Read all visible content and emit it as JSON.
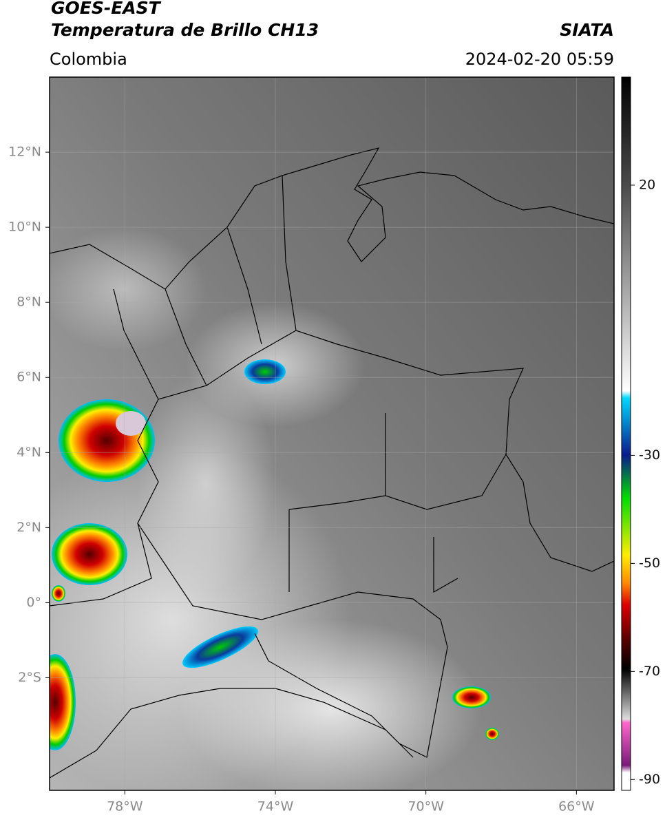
{
  "header": {
    "title": "GOES-EAST",
    "subtitle": "Temperatura de Brillo CH13",
    "source": "SIATA",
    "region": "Colombia",
    "timestamp": "2024-02-20 05:59"
  },
  "map": {
    "lon_lim": [
      -80,
      -65
    ],
    "lat_lim": [
      -5,
      14
    ],
    "grid": true,
    "lon_ticks": [
      {
        "value": -78,
        "label": "78°W"
      },
      {
        "value": -74,
        "label": "74°W"
      },
      {
        "value": -70,
        "label": "70°W"
      },
      {
        "value": -66,
        "label": "66°W"
      }
    ],
    "lat_ticks": [
      {
        "value": 12,
        "label": "12°N"
      },
      {
        "value": 10,
        "label": "10°N"
      },
      {
        "value": 8,
        "label": "8°N"
      },
      {
        "value": 6,
        "label": "6°N"
      },
      {
        "value": 4,
        "label": "4°N"
      },
      {
        "value": 2,
        "label": "2°N"
      },
      {
        "value": 0,
        "label": "0°"
      },
      {
        "value": -2,
        "label": "2°S"
      }
    ]
  },
  "colorbar": {
    "lim": [
      -92,
      40
    ],
    "ticks": [
      20,
      -30,
      -50,
      -70,
      -90
    ]
  }
}
